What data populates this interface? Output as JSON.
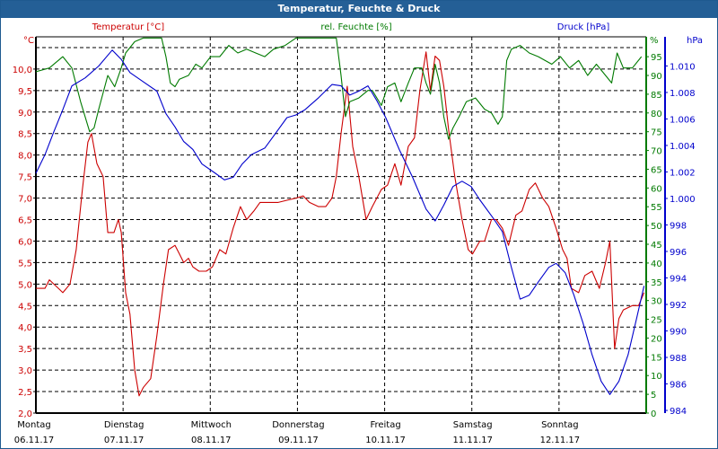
{
  "window": {
    "title": "Temperatur, Feuchte & Druck"
  },
  "colors": {
    "temperature": "#cc0000",
    "humidity": "#007a00",
    "pressure": "#0000cc",
    "titlebar": "#245f96"
  },
  "chart_data": {
    "type": "line",
    "title": "Temperatur, Feuchte & Druck",
    "x_unit": "hours since 06.11.17 00:00",
    "xlim": [
      0,
      168
    ],
    "days": [
      {
        "day": "Montag",
        "date": "06.11.17"
      },
      {
        "day": "Dienstag",
        "date": "07.11.17"
      },
      {
        "day": "Mittwoch",
        "date": "08.11.17"
      },
      {
        "day": "Donnerstag",
        "date": "09.11.17"
      },
      {
        "day": "Freitag",
        "date": "10.11.17"
      },
      {
        "day": "Samstag",
        "date": "11.11.17"
      },
      {
        "day": "Sonntag",
        "date": "12.11.17"
      }
    ],
    "axes": {
      "temperature": {
        "title": "Temperatur [°C]",
        "unit": "°C",
        "ylim": [
          2.0,
          10.75
        ],
        "ticks": [
          "2,0",
          "2,5",
          "3,0",
          "3,5",
          "4,0",
          "4,5",
          "5,0",
          "5,5",
          "6,0",
          "6,5",
          "7,0",
          "7,5",
          "8,0",
          "8,5",
          "9,0",
          "9,5",
          "10,0"
        ]
      },
      "humidity": {
        "title": "rel. Feuchte [%]",
        "unit": "%",
        "ylim": [
          0,
          100
        ],
        "ticks": [
          "0",
          "5",
          "10",
          "15",
          "20",
          "25",
          "30",
          "35",
          "40",
          "45",
          "50",
          "55",
          "60",
          "65",
          "70",
          "75",
          "80",
          "85",
          "90",
          "95"
        ]
      },
      "pressure": {
        "title": "Druck [hPa]",
        "unit": "hPa",
        "ylim": [
          983.8,
          1012.2
        ],
        "ticks": [
          "984",
          "986",
          "988",
          "990",
          "992",
          "994",
          "996",
          "998",
          "1.000",
          "1.002",
          "1.004",
          "1.006",
          "1.008",
          "1.010"
        ]
      }
    },
    "grid": true,
    "series": [
      {
        "name": "Temperatur [°C]",
        "axis": "temperature",
        "points": [
          [
            0,
            4.9
          ],
          [
            2.5,
            4.9
          ],
          [
            3.7,
            5.1
          ],
          [
            6.2,
            4.9
          ],
          [
            7.4,
            4.8
          ],
          [
            9.4,
            5.0
          ],
          [
            11.1,
            5.8
          ],
          [
            12.8,
            7.2
          ],
          [
            14.3,
            8.3
          ],
          [
            15.3,
            8.5
          ],
          [
            16.8,
            7.8
          ],
          [
            18.5,
            7.5
          ],
          [
            19.8,
            6.2
          ],
          [
            21.5,
            6.2
          ],
          [
            22.7,
            6.5
          ],
          [
            23.5,
            6.2
          ],
          [
            24.7,
            4.8
          ],
          [
            25.9,
            4.3
          ],
          [
            27.2,
            3.0
          ],
          [
            28.4,
            2.4
          ],
          [
            29.6,
            2.6
          ],
          [
            31.6,
            2.8
          ],
          [
            33.3,
            3.8
          ],
          [
            35.1,
            5.0
          ],
          [
            36.5,
            5.8
          ],
          [
            38.3,
            5.9
          ],
          [
            39.5,
            5.7
          ],
          [
            40.7,
            5.5
          ],
          [
            42,
            5.6
          ],
          [
            43.2,
            5.4
          ],
          [
            44.9,
            5.3
          ],
          [
            46.9,
            5.3
          ],
          [
            48.6,
            5.4
          ],
          [
            50.6,
            5.8
          ],
          [
            52.3,
            5.7
          ],
          [
            54.3,
            6.3
          ],
          [
            56.3,
            6.8
          ],
          [
            58,
            6.5
          ],
          [
            60,
            6.7
          ],
          [
            61.7,
            6.9
          ],
          [
            64.2,
            6.9
          ],
          [
            66.7,
            6.9
          ],
          [
            69.1,
            6.95
          ],
          [
            71.6,
            7.0
          ],
          [
            73.6,
            7.05
          ],
          [
            75.3,
            6.9
          ],
          [
            77.8,
            6.8
          ],
          [
            79.8,
            6.8
          ],
          [
            81.5,
            7.0
          ],
          [
            82.7,
            7.5
          ],
          [
            84,
            8.5
          ],
          [
            85.7,
            9.6
          ],
          [
            87.2,
            8.2
          ],
          [
            88.9,
            7.5
          ],
          [
            90.9,
            6.5
          ],
          [
            92.6,
            6.8
          ],
          [
            95.1,
            7.2
          ],
          [
            96.8,
            7.3
          ],
          [
            98.8,
            7.8
          ],
          [
            100.5,
            7.3
          ],
          [
            102.5,
            8.2
          ],
          [
            104.2,
            8.4
          ],
          [
            105.7,
            9.5
          ],
          [
            107.4,
            10.4
          ],
          [
            108.6,
            9.5
          ],
          [
            109.9,
            10.3
          ],
          [
            111.1,
            10.2
          ],
          [
            112.3,
            9.6
          ],
          [
            113.6,
            8.6
          ],
          [
            115.3,
            7.5
          ],
          [
            117.3,
            6.5
          ],
          [
            119,
            5.8
          ],
          [
            120.2,
            5.7
          ],
          [
            122.2,
            6.0
          ],
          [
            123.5,
            6.0
          ],
          [
            125.4,
            6.5
          ],
          [
            126.7,
            6.5
          ],
          [
            128.4,
            6.3
          ],
          [
            130.1,
            5.9
          ],
          [
            132.1,
            6.6
          ],
          [
            133.8,
            6.7
          ],
          [
            135.8,
            7.2
          ],
          [
            137.5,
            7.35
          ],
          [
            139.5,
            7.0
          ],
          [
            141.2,
            6.8
          ],
          [
            143.2,
            6.3
          ],
          [
            145,
            5.8
          ],
          [
            146.2,
            5.6
          ],
          [
            147.4,
            4.9
          ],
          [
            149.4,
            4.8
          ],
          [
            151.1,
            5.2
          ],
          [
            153.1,
            5.3
          ],
          [
            155.1,
            4.9
          ],
          [
            156.8,
            5.5
          ],
          [
            158,
            6.0
          ],
          [
            159.3,
            3.5
          ],
          [
            160.5,
            4.2
          ],
          [
            161.7,
            4.4
          ],
          [
            164.2,
            4.5
          ],
          [
            165.9,
            4.5
          ],
          [
            167.4,
            4.8
          ]
        ]
      },
      {
        "name": "rel. Feuchte [%]",
        "axis": "humidity",
        "points": [
          [
            0,
            91
          ],
          [
            3.7,
            92
          ],
          [
            7.4,
            95
          ],
          [
            9.9,
            92
          ],
          [
            12.3,
            83
          ],
          [
            14.8,
            75
          ],
          [
            16,
            76
          ],
          [
            17.3,
            81
          ],
          [
            19.8,
            90
          ],
          [
            21.7,
            87
          ],
          [
            23.5,
            92
          ],
          [
            24.7,
            96
          ],
          [
            27.2,
            99
          ],
          [
            29.6,
            100
          ],
          [
            34.6,
            100
          ],
          [
            35.8,
            95
          ],
          [
            37,
            88
          ],
          [
            38.3,
            87
          ],
          [
            39.5,
            89
          ],
          [
            42,
            90
          ],
          [
            44,
            93
          ],
          [
            45.7,
            92
          ],
          [
            48.1,
            95
          ],
          [
            50.6,
            95
          ],
          [
            53.1,
            98
          ],
          [
            55.6,
            96
          ],
          [
            58,
            97
          ],
          [
            60.5,
            96
          ],
          [
            63,
            95
          ],
          [
            65.4,
            97
          ],
          [
            68.6,
            98
          ],
          [
            71.6,
            100
          ],
          [
            82.7,
            100
          ],
          [
            84,
            90
          ],
          [
            85.2,
            79
          ],
          [
            86.4,
            83
          ],
          [
            88.9,
            84
          ],
          [
            91.4,
            86
          ],
          [
            92.6,
            86
          ],
          [
            95.1,
            82
          ],
          [
            96.8,
            87
          ],
          [
            98.8,
            88
          ],
          [
            100.5,
            83
          ],
          [
            102.5,
            88
          ],
          [
            104.2,
            92
          ],
          [
            106.2,
            92
          ],
          [
            107.4,
            88
          ],
          [
            108.6,
            85
          ],
          [
            109.9,
            93
          ],
          [
            111.1,
            88
          ],
          [
            112.3,
            79
          ],
          [
            113.6,
            73
          ],
          [
            114.8,
            76
          ],
          [
            116.5,
            79
          ],
          [
            118.5,
            83
          ],
          [
            121,
            84
          ],
          [
            123.5,
            81
          ],
          [
            125.4,
            80
          ],
          [
            127.2,
            77
          ],
          [
            128.4,
            79
          ],
          [
            129.6,
            94
          ],
          [
            130.9,
            97
          ],
          [
            133.3,
            98
          ],
          [
            135.8,
            96
          ],
          [
            138.3,
            95
          ],
          [
            142,
            93
          ],
          [
            144.4,
            95
          ],
          [
            146.9,
            92
          ],
          [
            149.4,
            94
          ],
          [
            151.9,
            90
          ],
          [
            154.3,
            93
          ],
          [
            156.8,
            90
          ],
          [
            158.5,
            88
          ],
          [
            160,
            96
          ],
          [
            161.7,
            92
          ],
          [
            164.2,
            92
          ],
          [
            166.7,
            95
          ]
        ]
      },
      {
        "name": "Druck [hPa]",
        "axis": "pressure",
        "points": [
          [
            0,
            1001.9
          ],
          [
            2.5,
            1003.3
          ],
          [
            4.9,
            1005
          ],
          [
            7.4,
            1006.7
          ],
          [
            9.9,
            1008.5
          ],
          [
            13.6,
            1009.1
          ],
          [
            17.3,
            1010
          ],
          [
            21,
            1011.2
          ],
          [
            23.5,
            1010.5
          ],
          [
            25.9,
            1009.5
          ],
          [
            29.6,
            1008.8
          ],
          [
            33.3,
            1008.1
          ],
          [
            35.8,
            1006.4
          ],
          [
            38.3,
            1005.4
          ],
          [
            40.7,
            1004.3
          ],
          [
            43.2,
            1003.7
          ],
          [
            45.7,
            1002.6
          ],
          [
            49.4,
            1001.9
          ],
          [
            51.9,
            1001.4
          ],
          [
            54.3,
            1001.6
          ],
          [
            56.8,
            1002.6
          ],
          [
            59.3,
            1003.3
          ],
          [
            63,
            1003.8
          ],
          [
            65.4,
            1004.7
          ],
          [
            69.1,
            1006.1
          ],
          [
            71.6,
            1006.3
          ],
          [
            74.1,
            1006.7
          ],
          [
            77.8,
            1007.6
          ],
          [
            81.5,
            1008.6
          ],
          [
            84,
            1008.5
          ],
          [
            86.4,
            1007.8
          ],
          [
            88.9,
            1008.1
          ],
          [
            91.4,
            1008.5
          ],
          [
            93.8,
            1007.4
          ],
          [
            96.3,
            1006.1
          ],
          [
            100,
            1003.7
          ],
          [
            103.7,
            1001.6
          ],
          [
            107.4,
            999.2
          ],
          [
            109.9,
            998.3
          ],
          [
            112.3,
            999.5
          ],
          [
            114.8,
            1000.9
          ],
          [
            117.3,
            1001.3
          ],
          [
            119.8,
            1000.9
          ],
          [
            122.2,
            999.9
          ],
          [
            125.9,
            998.5
          ],
          [
            128.4,
            997.5
          ],
          [
            130.9,
            994.8
          ],
          [
            133.3,
            992.4
          ],
          [
            135.8,
            992.7
          ],
          [
            138.3,
            993.7
          ],
          [
            141.2,
            994.8
          ],
          [
            143.2,
            995.1
          ],
          [
            145.7,
            994.4
          ],
          [
            148.1,
            992.7
          ],
          [
            150.6,
            990.6
          ],
          [
            153.1,
            988.2
          ],
          [
            155.6,
            986.2
          ],
          [
            158,
            985.2
          ],
          [
            160.5,
            986.2
          ],
          [
            163,
            988.2
          ],
          [
            165.4,
            991
          ],
          [
            167.4,
            993.4
          ]
        ]
      }
    ]
  }
}
